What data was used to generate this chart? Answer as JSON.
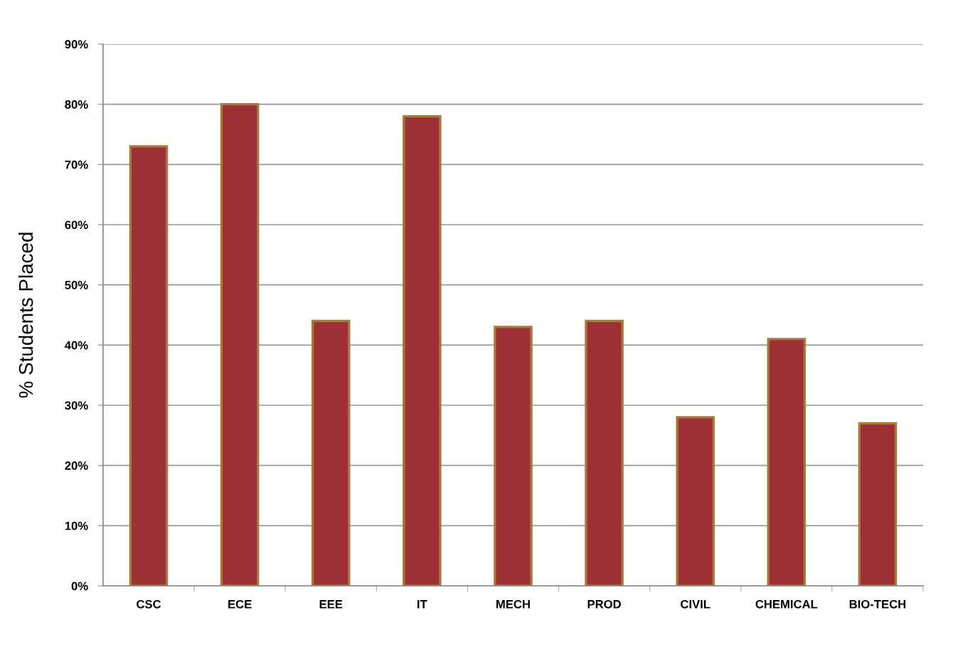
{
  "chart_data": {
    "type": "bar",
    "ylabel": "% Students Placed",
    "categories": [
      "CSC",
      "ECE",
      "EEE",
      "IT",
      "MECH",
      "PROD",
      "CIVIL",
      "CHEMICAL",
      "BIO-TECH"
    ],
    "series": [
      {
        "color": "#9e2f35",
        "values": [
          73,
          80,
          44,
          78,
          43,
          44,
          28,
          41,
          27
        ]
      }
    ],
    "ylim": [
      0,
      90
    ],
    "yticks": [
      {
        "value": 0,
        "label": "0%"
      },
      {
        "value": 10,
        "label": "10%"
      },
      {
        "value": 20,
        "label": "20%"
      },
      {
        "value": 30,
        "label": "30%"
      },
      {
        "value": 40,
        "label": "40%"
      },
      {
        "value": 50,
        "label": "50%"
      },
      {
        "value": 60,
        "label": "60%"
      },
      {
        "value": 70,
        "label": "70%"
      },
      {
        "value": 80,
        "label": "80%"
      },
      {
        "value": 90,
        "label": "90%"
      }
    ],
    "grid": "y"
  }
}
